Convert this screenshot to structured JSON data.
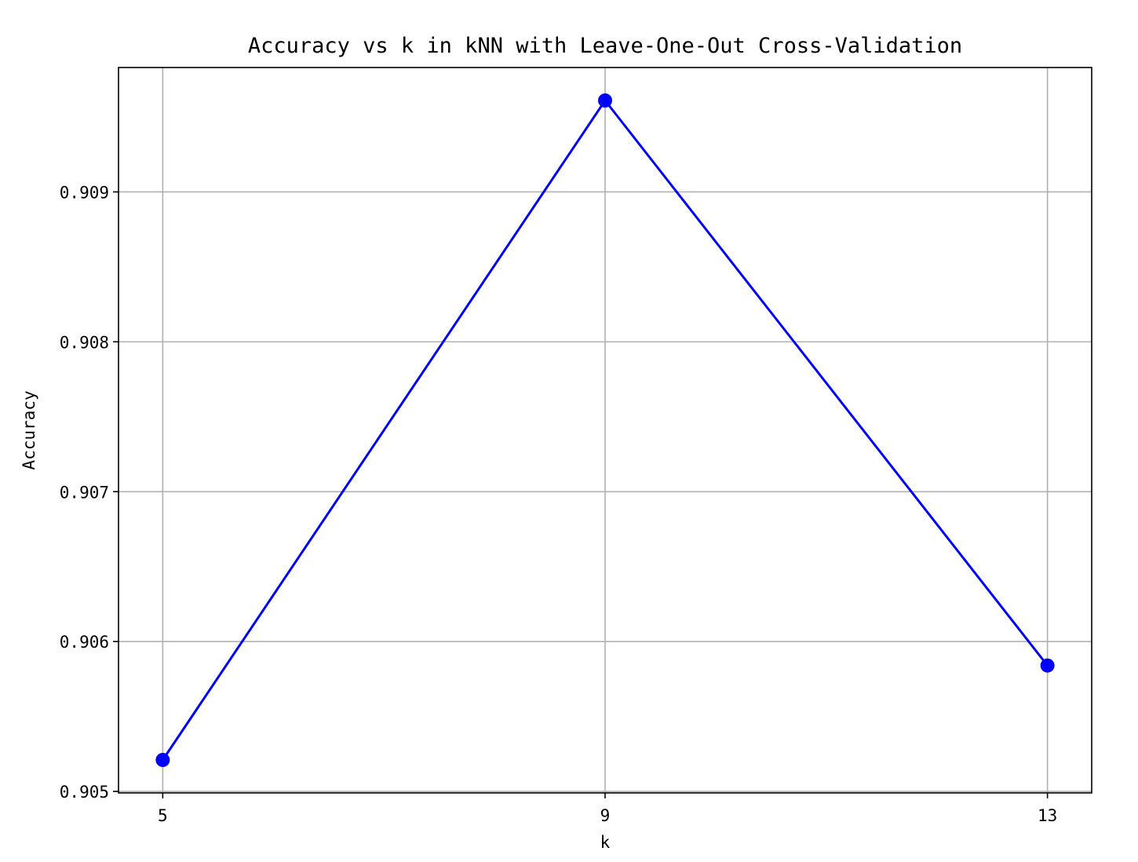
{
  "chart_data": {
    "type": "line",
    "title": "Accuracy vs k in kNN with Leave-One-Out Cross-Validation",
    "xlabel": "k",
    "ylabel": "Accuracy",
    "x": [
      5,
      9,
      13
    ],
    "x_tick_labels": [
      "5",
      "9",
      "13"
    ],
    "y_ticks": [
      0.905,
      0.906,
      0.907,
      0.908,
      0.909
    ],
    "y_tick_labels": [
      "0.905",
      "0.906",
      "0.907",
      "0.908",
      "0.909"
    ],
    "xlim": [
      4.6,
      13.4
    ],
    "ylim": [
      0.90499,
      0.90983
    ],
    "grid": true,
    "series": [
      {
        "values": [
          0.90521,
          0.90961,
          0.90584
        ],
        "color": "#0000ff",
        "marker": "circle"
      }
    ],
    "colors": {
      "line": "#0000ff",
      "grid": "#b0b0b0",
      "axes": "#000000"
    }
  }
}
